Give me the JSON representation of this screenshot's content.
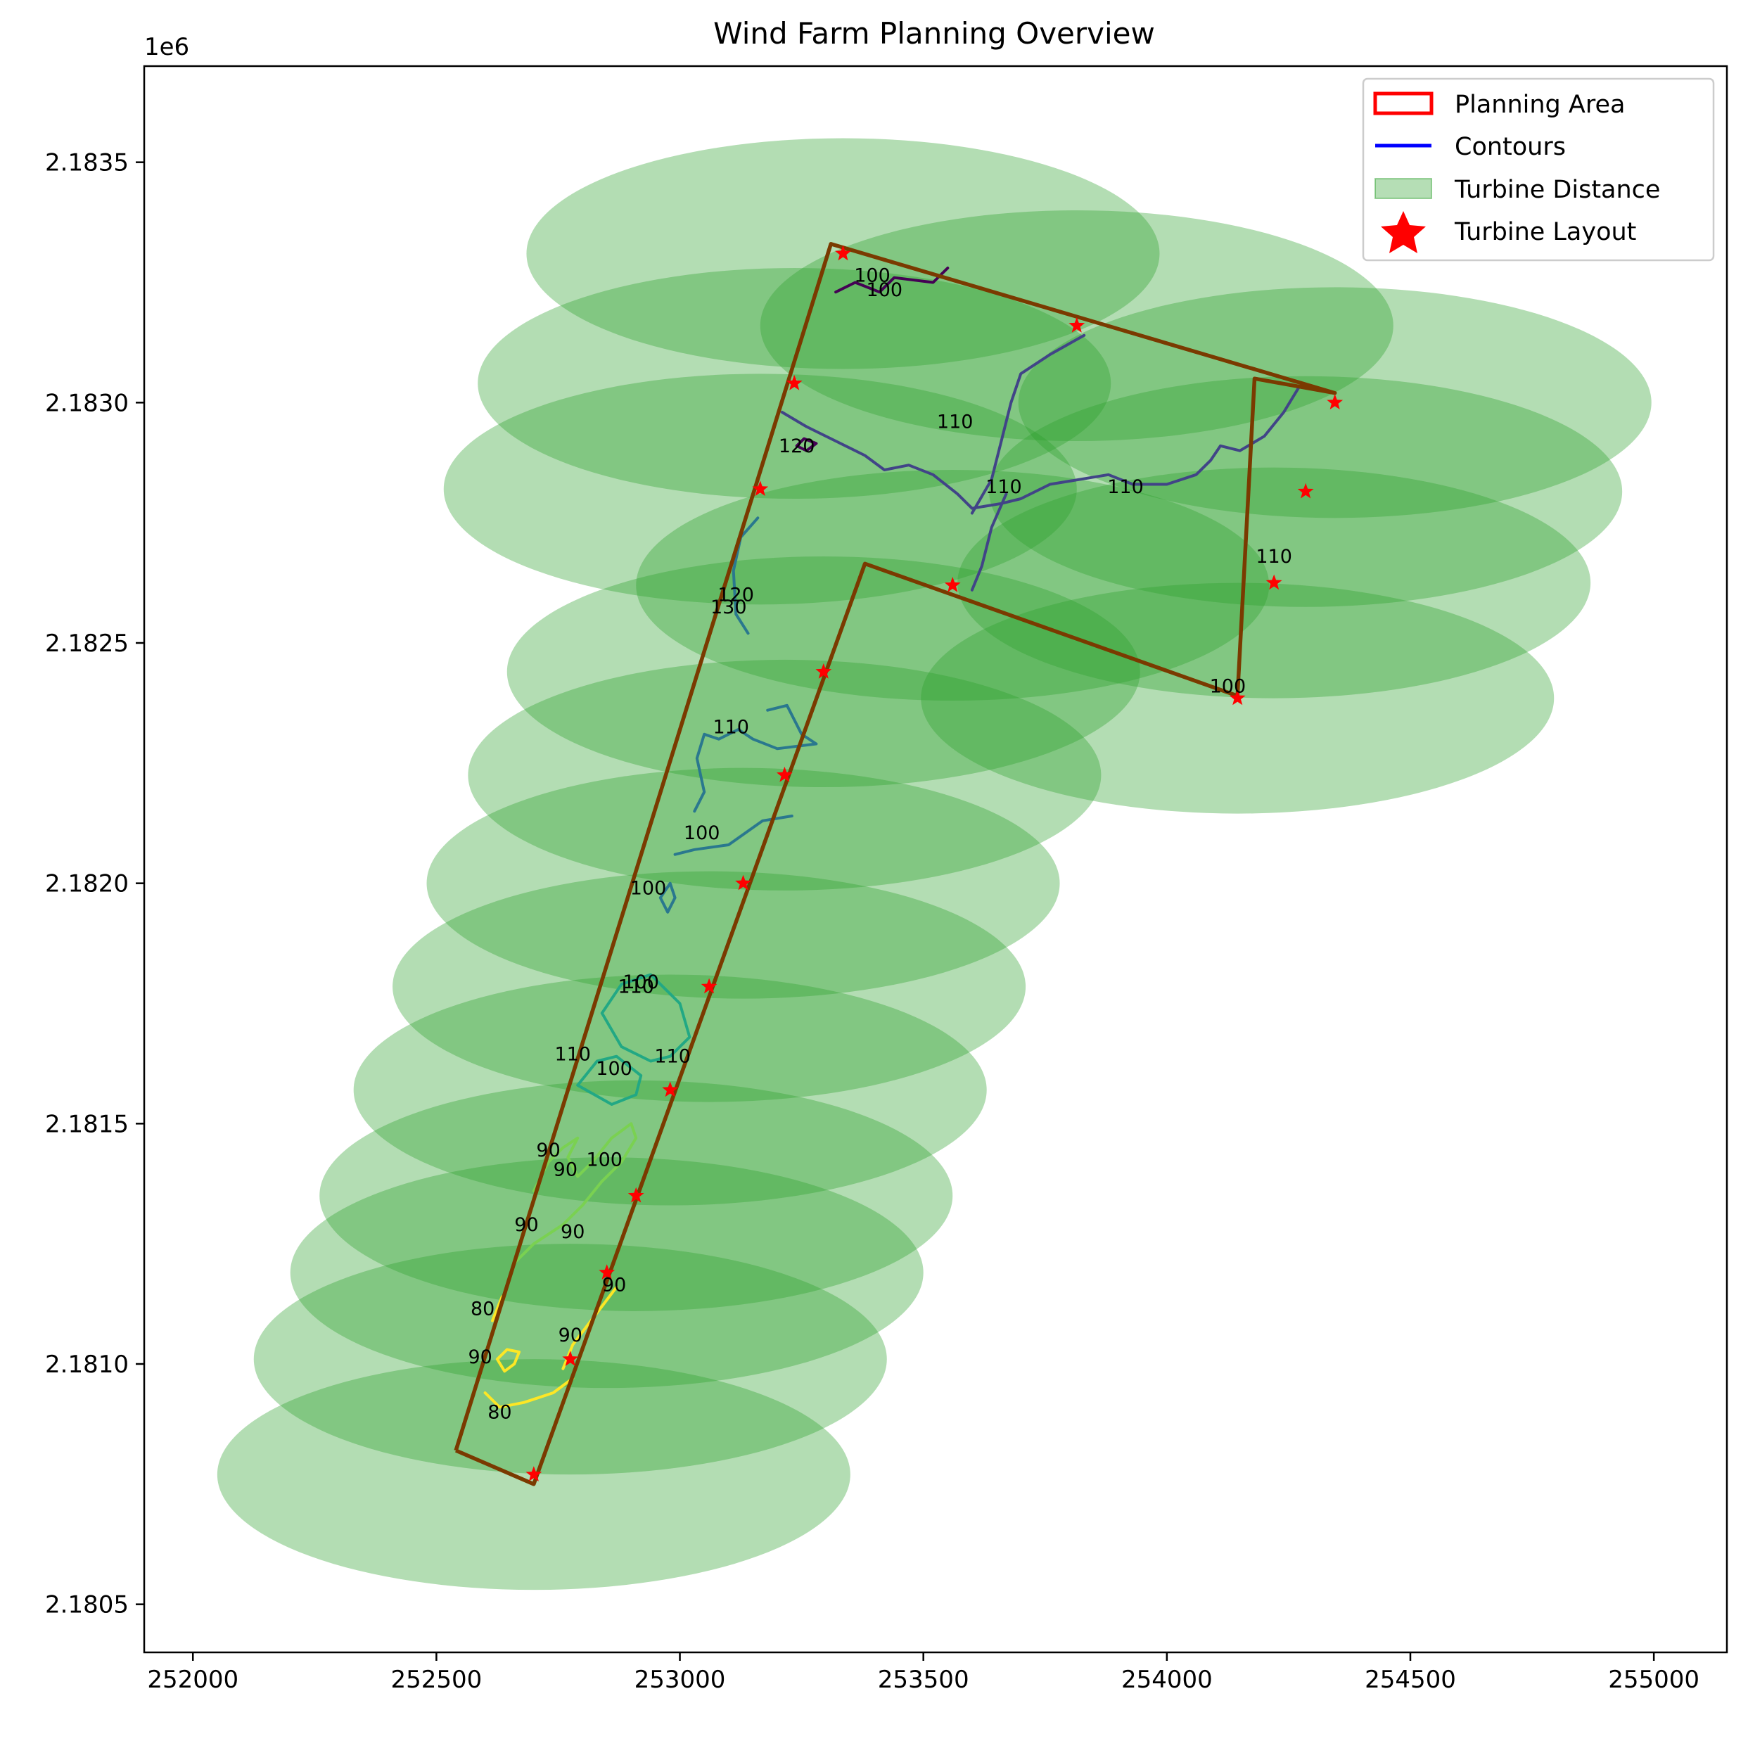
{
  "chart_data": {
    "type": "map",
    "title": "Wind Farm Planning Overview",
    "xlim": [
      251900,
      255150
    ],
    "ylim": [
      2180400,
      2183700
    ],
    "ytick_scale_label": "1e6",
    "xticks": [
      252000,
      252500,
      253000,
      253500,
      254000,
      254500,
      255000
    ],
    "xtick_labels": [
      "252000",
      "252500",
      "253000",
      "253500",
      "254000",
      "254500",
      "255000"
    ],
    "yticks": [
      2180500,
      2181000,
      2181500,
      2182000,
      2182500,
      2183000,
      2183500
    ],
    "ytick_labels": [
      "2.1805",
      "2.1810",
      "2.1815",
      "2.1820",
      "2.1825",
      "2.1830",
      "2.1835"
    ],
    "legend": {
      "placement": "top-right",
      "entries": [
        {
          "label": "Planning Area",
          "kind": "patch-outline",
          "color": "#ff0000"
        },
        {
          "label": "Contours",
          "kind": "line",
          "color": "#0000ff"
        },
        {
          "label": "Turbine Distance",
          "kind": "patch-fill",
          "color": "#2ca02c"
        },
        {
          "label": "Turbine Layout",
          "kind": "star",
          "color": "#ff0000"
        }
      ]
    },
    "colors": {
      "boundary": "#7a3a00",
      "buffer": "#2ca02c",
      "turbine": "#ff0000",
      "contour_levels": {
        "80": "#fde725",
        "90": "#7ad151",
        "100": "#22a884",
        "110": "#2a788e",
        "120": "#414487",
        "130": "#440154"
      }
    },
    "planning_area": [
      [
        252540,
        2180820
      ],
      [
        252700,
        2180750
      ],
      [
        253380,
        2182665
      ],
      [
        254145,
        2182390
      ],
      [
        254180,
        2183050
      ],
      [
        254345,
        2183020
      ],
      [
        253310,
        2183330
      ],
      [
        252540,
        2180820
      ]
    ],
    "buffer_radius": {
      "x": 650,
      "y": 240
    },
    "turbines": [
      [
        252700,
        2180770
      ],
      [
        252775,
        2181010
      ],
      [
        252850,
        2181190
      ],
      [
        252910,
        2181350
      ],
      [
        252980,
        2181570
      ],
      [
        253060,
        2181785
      ],
      [
        253130,
        2182000
      ],
      [
        253215,
        2182225
      ],
      [
        253295,
        2182440
      ],
      [
        253560,
        2182620
      ],
      [
        254145,
        2182385
      ],
      [
        254220,
        2182625
      ],
      [
        254285,
        2182815
      ],
      [
        254345,
        2183000
      ],
      [
        253815,
        2183160
      ],
      [
        253335,
        2183310
      ],
      [
        253235,
        2183040
      ],
      [
        253165,
        2182820
      ]
    ],
    "contours": [
      {
        "level": 120,
        "color": "#440154",
        "points": [
          [
            253320,
            2183230
          ],
          [
            253360,
            2183250
          ],
          [
            253410,
            2183230
          ],
          [
            253440,
            2183260
          ],
          [
            253520,
            2183250
          ],
          [
            253550,
            2183280
          ]
        ]
      },
      {
        "level": 120,
        "color": "#440154",
        "points": [
          [
            253240,
            2182910
          ],
          [
            253260,
            2182900
          ],
          [
            253280,
            2182915
          ],
          [
            253255,
            2182925
          ],
          [
            253240,
            2182910
          ]
        ]
      },
      {
        "level": 120,
        "color": "#414487",
        "points": [
          [
            253210,
            2182980
          ],
          [
            253260,
            2182950
          ],
          [
            253320,
            2182920
          ],
          [
            253380,
            2182890
          ],
          [
            253420,
            2182860
          ],
          [
            253470,
            2182870
          ],
          [
            253520,
            2182850
          ],
          [
            253570,
            2182810
          ],
          [
            253600,
            2182780
          ],
          [
            253660,
            2182790
          ],
          [
            253700,
            2182800
          ],
          [
            253760,
            2182830
          ],
          [
            253820,
            2182840
          ],
          [
            253880,
            2182850
          ],
          [
            253930,
            2182830
          ],
          [
            254000,
            2182830
          ],
          [
            254060,
            2182850
          ],
          [
            254090,
            2182880
          ],
          [
            254110,
            2182910
          ],
          [
            254150,
            2182900
          ],
          [
            254200,
            2182930
          ],
          [
            254240,
            2182980
          ],
          [
            254270,
            2183030
          ]
        ]
      },
      {
        "level": 110,
        "color": "#414487",
        "points": [
          [
            253600,
            2182770
          ],
          [
            253640,
            2182840
          ],
          [
            253660,
            2182920
          ],
          [
            253680,
            2183000
          ],
          [
            253700,
            2183060
          ],
          [
            253760,
            2183100
          ],
          [
            253830,
            2183140
          ]
        ]
      },
      {
        "level": 110,
        "color": "#414487",
        "points": [
          [
            253670,
            2182810
          ],
          [
            253640,
            2182740
          ],
          [
            253620,
            2182660
          ],
          [
            253600,
            2182610
          ]
        ]
      },
      {
        "level": 110,
        "color": "#2a788e",
        "points": [
          [
            253160,
            2182760
          ],
          [
            253125,
            2182720
          ],
          [
            253110,
            2182650
          ],
          [
            253115,
            2182560
          ],
          [
            253140,
            2182520
          ]
        ]
      },
      {
        "level": 110,
        "color": "#2a788e",
        "points": [
          [
            253180,
            2182360
          ],
          [
            253220,
            2182370
          ],
          [
            253250,
            2182310
          ],
          [
            253280,
            2182290
          ],
          [
            253200,
            2182280
          ],
          [
            253150,
            2182300
          ],
          [
            253120,
            2182320
          ],
          [
            253080,
            2182300
          ],
          [
            253050,
            2182310
          ],
          [
            253035,
            2182260
          ],
          [
            253050,
            2182190
          ],
          [
            253030,
            2182150
          ]
        ]
      },
      {
        "level": 100,
        "color": "#2a788e",
        "points": [
          [
            252990,
            2182060
          ],
          [
            253030,
            2182070
          ],
          [
            253100,
            2182080
          ],
          [
            253170,
            2182130
          ],
          [
            253230,
            2182140
          ]
        ]
      },
      {
        "level": 100,
        "color": "#2a788e",
        "points": [
          [
            252975,
            2181940
          ],
          [
            252960,
            2181970
          ],
          [
            252980,
            2182000
          ],
          [
            252990,
            2181970
          ],
          [
            252975,
            2181940
          ]
        ]
      },
      {
        "level": 100,
        "color": "#22a884",
        "points": [
          [
            252840,
            2181730
          ],
          [
            252880,
            2181790
          ],
          [
            252940,
            2181810
          ],
          [
            253000,
            2181750
          ],
          [
            253020,
            2181680
          ],
          [
            252980,
            2181640
          ],
          [
            252940,
            2181630
          ],
          [
            252880,
            2181660
          ],
          [
            252840,
            2181730
          ]
        ]
      },
      {
        "level": 100,
        "color": "#22a884",
        "points": [
          [
            252790,
            2181580
          ],
          [
            252830,
            2181630
          ],
          [
            252870,
            2181640
          ],
          [
            252920,
            2181600
          ],
          [
            252910,
            2181560
          ],
          [
            252860,
            2181540
          ],
          [
            252790,
            2181580
          ]
        ]
      },
      {
        "level": 90,
        "color": "#7ad151",
        "points": [
          [
            252660,
            2181210
          ],
          [
            252700,
            2181250
          ],
          [
            252760,
            2181290
          ],
          [
            252800,
            2181330
          ],
          [
            252840,
            2181380
          ],
          [
            252880,
            2181420
          ],
          [
            252910,
            2181470
          ],
          [
            252900,
            2181500
          ],
          [
            252860,
            2181470
          ],
          [
            252820,
            2181420
          ],
          [
            252790,
            2181390
          ],
          [
            252770,
            2181430
          ],
          [
            252790,
            2181470
          ],
          [
            252760,
            2181450
          ],
          [
            252730,
            2181420
          ],
          [
            252700,
            2181360
          ]
        ]
      },
      {
        "level": 90,
        "color": "#fde725",
        "points": [
          [
            252600,
            2180940
          ],
          [
            252630,
            2180910
          ],
          [
            252680,
            2180920
          ],
          [
            252740,
            2180940
          ],
          [
            252780,
            2180970
          ]
        ]
      },
      {
        "level": 90,
        "color": "#fde725",
        "points": [
          [
            252625,
            2181010
          ],
          [
            252645,
            2181030
          ],
          [
            252670,
            2181025
          ],
          [
            252660,
            2181000
          ],
          [
            252640,
            2180985
          ],
          [
            252625,
            2181010
          ]
        ]
      },
      {
        "level": 90,
        "color": "#fde725",
        "points": [
          [
            252760,
            2180990
          ],
          [
            252780,
            2181040
          ],
          [
            252810,
            2181080
          ],
          [
            252840,
            2181120
          ],
          [
            252870,
            2181160
          ]
        ]
      },
      {
        "level": 90,
        "color": "#fde725",
        "points": [
          [
            252615,
            2181090
          ],
          [
            252635,
            2181140
          ]
        ]
      }
    ],
    "contour_labels": [
      {
        "text": "100",
        "x": 253395,
        "y": 2183265
      },
      {
        "text": "100",
        "x": 253420,
        "y": 2183235
      },
      {
        "text": "120",
        "x": 253240,
        "y": 2182910
      },
      {
        "text": "110",
        "x": 253565,
        "y": 2182960
      },
      {
        "text": "110",
        "x": 253665,
        "y": 2182825
      },
      {
        "text": "110",
        "x": 253915,
        "y": 2182825
      },
      {
        "text": "110",
        "x": 254220,
        "y": 2182680
      },
      {
        "text": "100",
        "x": 254125,
        "y": 2182410
      },
      {
        "text": "120",
        "x": 253115,
        "y": 2182600
      },
      {
        "text": "130",
        "x": 253100,
        "y": 2182575
      },
      {
        "text": "110",
        "x": 253105,
        "y": 2182325
      },
      {
        "text": "100",
        "x": 253045,
        "y": 2182105
      },
      {
        "text": "100",
        "x": 252935,
        "y": 2181990
      },
      {
        "text": "100",
        "x": 252920,
        "y": 2181795
      },
      {
        "text": "110",
        "x": 252910,
        "y": 2181785
      },
      {
        "text": "110",
        "x": 252780,
        "y": 2181645
      },
      {
        "text": "100",
        "x": 252865,
        "y": 2181615
      },
      {
        "text": "110",
        "x": 252985,
        "y": 2181640
      },
      {
        "text": "90",
        "x": 252730,
        "y": 2181445
      },
      {
        "text": "90",
        "x": 252765,
        "y": 2181405
      },
      {
        "text": "100",
        "x": 252845,
        "y": 2181425
      },
      {
        "text": "90",
        "x": 252685,
        "y": 2181290
      },
      {
        "text": "90",
        "x": 252780,
        "y": 2181275
      },
      {
        "text": "90",
        "x": 252865,
        "y": 2181165
      },
      {
        "text": "80",
        "x": 252595,
        "y": 2181115
      },
      {
        "text": "90",
        "x": 252775,
        "y": 2181060
      },
      {
        "text": "90",
        "x": 252590,
        "y": 2181015
      },
      {
        "text": "80",
        "x": 252630,
        "y": 2180900
      }
    ]
  }
}
